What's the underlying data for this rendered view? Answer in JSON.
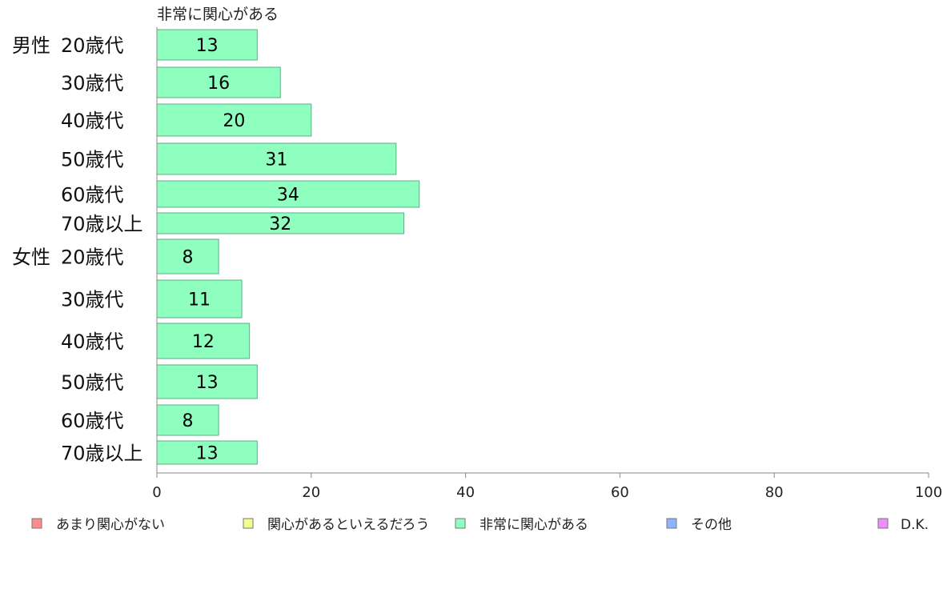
{
  "chart_data": {
    "type": "bar",
    "orientation": "horizontal",
    "series_caption": "非常に関心がある",
    "groups": [
      "男性",
      "女性"
    ],
    "categories": [
      "20歳代",
      "30歳代",
      "40歳代",
      "50歳代",
      "60歳代",
      "70歳以上",
      "20歳代",
      "30歳代",
      "40歳代",
      "50歳代",
      "60歳代",
      "70歳以上"
    ],
    "category_group": [
      "男性",
      "男性",
      "男性",
      "男性",
      "男性",
      "男性",
      "女性",
      "女性",
      "女性",
      "女性",
      "女性",
      "女性"
    ],
    "series": [
      {
        "name": "非常に関心がある",
        "color": "#8effbf",
        "values": [
          13,
          16,
          20,
          31,
          34,
          32,
          8,
          11,
          12,
          13,
          8,
          13
        ]
      }
    ],
    "xlim": [
      0,
      100
    ],
    "xticks": [
      0,
      20,
      40,
      60,
      80,
      100
    ],
    "legend": {
      "placement": "bottom",
      "items": [
        {
          "label": "あまり関心がない",
          "color": "#ff8c8c"
        },
        {
          "label": "関心があるといえるだろう",
          "color": "#f2ff8c"
        },
        {
          "label": "非常に関心がある",
          "color": "#8effbf"
        },
        {
          "label": "その他",
          "color": "#8cb4ff"
        },
        {
          "label": "D.K.",
          "color": "#f08cff"
        }
      ]
    },
    "grid": false
  }
}
